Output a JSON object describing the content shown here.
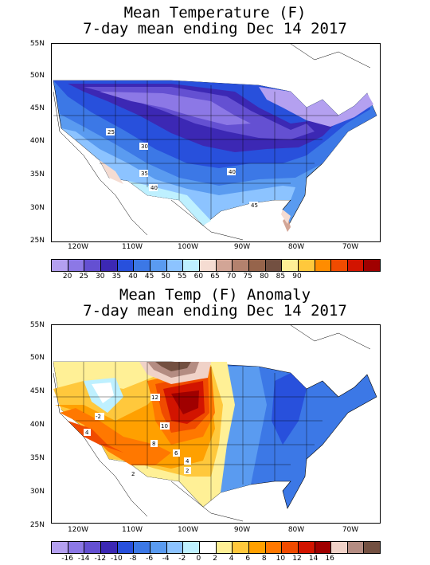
{
  "map1": {
    "title_line1": "Mean Temperature (F)",
    "title_line2": "7-day mean ending Dec 14 2017",
    "lat_labels": [
      "55N",
      "50N",
      "45N",
      "40N",
      "35N",
      "30N",
      "25N"
    ],
    "lon_labels": [
      "120W",
      "110W",
      "100W",
      "90W",
      "80W",
      "70W"
    ],
    "contour_labels": [
      "25",
      "30",
      "35",
      "40",
      "40",
      "45"
    ],
    "colorbar_colors": [
      "#b4a0f0",
      "#8c78e6",
      "#6450d2",
      "#3c28b4",
      "#2850dc",
      "#3c78e6",
      "#5a9bf0",
      "#8cc3ff",
      "#bef0ff",
      "#f5dcd2",
      "#d2a596",
      "#b4826e",
      "#96644b",
      "#735041",
      "#fff096",
      "#ffc83c",
      "#ff8c00",
      "#f04b00",
      "#d21400",
      "#a00000"
    ],
    "colorbar_labels": [
      "20",
      "25",
      "30",
      "35",
      "40",
      "45",
      "50",
      "55",
      "60",
      "65",
      "70",
      "75",
      "80",
      "85",
      "90"
    ]
  },
  "map2": {
    "title_line1": "Mean Temp (F) Anomaly",
    "title_line2": "7-day mean ending Dec 14 2017",
    "lat_labels": [
      "55N",
      "50N",
      "45N",
      "40N",
      "35N",
      "30N",
      "25N"
    ],
    "lon_labels": [
      "120W",
      "110W",
      "100W",
      "90W",
      "80W",
      "70W"
    ],
    "contour_labels": [
      "12",
      "10",
      "8",
      "6",
      "4",
      "2",
      "-2",
      "4",
      "2"
    ],
    "colorbar_colors": [
      "#b4a0f0",
      "#8c78e6",
      "#6450d2",
      "#3c28b4",
      "#2850dc",
      "#3c78e6",
      "#5a9bf0",
      "#8cc3ff",
      "#bef0ff",
      "#ffffff",
      "#fff096",
      "#ffc83c",
      "#ffa000",
      "#ff7800",
      "#f04b00",
      "#d21400",
      "#a00000",
      "#f0d2c8",
      "#b48c82",
      "#735041"
    ],
    "colorbar_labels": [
      "-16",
      "-14",
      "-12",
      "-10",
      "-8",
      "-6",
      "-4",
      "-2",
      "0",
      "2",
      "4",
      "6",
      "8",
      "10",
      "12",
      "14",
      "16"
    ]
  }
}
